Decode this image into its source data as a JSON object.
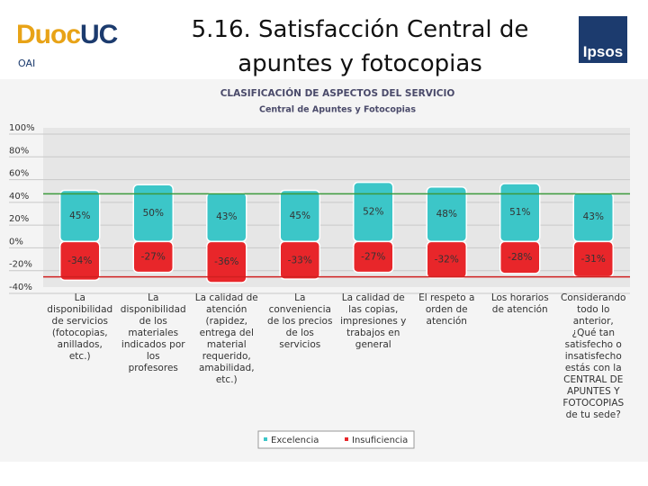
{
  "header": {
    "logo_left_a": "Duoc",
    "logo_left_b": "UC",
    "unit": "OAI",
    "title": "5.16. Satisfacción Central de apuntes y fotocopias",
    "logo_right": "Ipsos"
  },
  "chart_data": {
    "type": "bar",
    "title": "CLASIFICACIÓN DE ASPECTOS DEL SERVICIO",
    "subtitle": "Central de Apuntes y Fotocopias",
    "categories": [
      "La\ndisponibilidad\nde servicios\n(fotocopias,\nanillados,\netc.)",
      "La\ndisponibilidad\nde los\nmateriales\nindicados por\nlos\nprofesores",
      "La calidad de\natención\n(rapidez,\nentrega del\nmaterial\nrequerido,\namabilidad,\netc.)",
      "La\nconveniencia\nde los precios\nde los\nservicios",
      "La calidad de\nlas copias,\nimpresiones y\ntrabajos en\ngeneral",
      "El respeto a\norden de\natención",
      "Los horarios\nde atención",
      "Considerando\ntodo lo\nanterior,\n¿Qué tan\nsatisfecho o\ninsatisfecho\nestás con la\nCENTRAL DE\nAPUNTES Y\nFOTOCOPIAS\nde tu sede?"
    ],
    "series": [
      {
        "name": "Excelencia",
        "color": "#3cc6c8",
        "values": [
          45,
          50,
          43,
          45,
          52,
          48,
          51,
          43
        ],
        "value_labels": [
          "45%",
          "50%",
          "43%",
          "45%",
          "52%",
          "48%",
          "51%",
          "43%"
        ]
      },
      {
        "name": "Insuficiencia",
        "color": "#e8262a",
        "values": [
          -34,
          -27,
          -36,
          -33,
          -27,
          -32,
          -28,
          -31
        ],
        "value_labels": [
          "-34%",
          "-27%",
          "-36%",
          "-33%",
          "-27%",
          "-32%",
          "-28%",
          "-31%"
        ]
      }
    ],
    "reference_lines": [
      {
        "value": 42,
        "color": "#3c9a3c"
      },
      {
        "value": -31,
        "color": "#d02020"
      }
    ],
    "ylim": [
      -40,
      100
    ],
    "yticks": [
      {
        "value": -40,
        "label": "-40%"
      },
      {
        "value": -20,
        "label": "-20%"
      },
      {
        "value": 0,
        "label": "0%"
      },
      {
        "value": 20,
        "label": "20%"
      },
      {
        "value": 40,
        "label": "40%"
      },
      {
        "value": 60,
        "label": "60%"
      },
      {
        "value": 80,
        "label": "80%"
      },
      {
        "value": 100,
        "label": "100%"
      }
    ],
    "grid": true,
    "legend": "bottom"
  }
}
